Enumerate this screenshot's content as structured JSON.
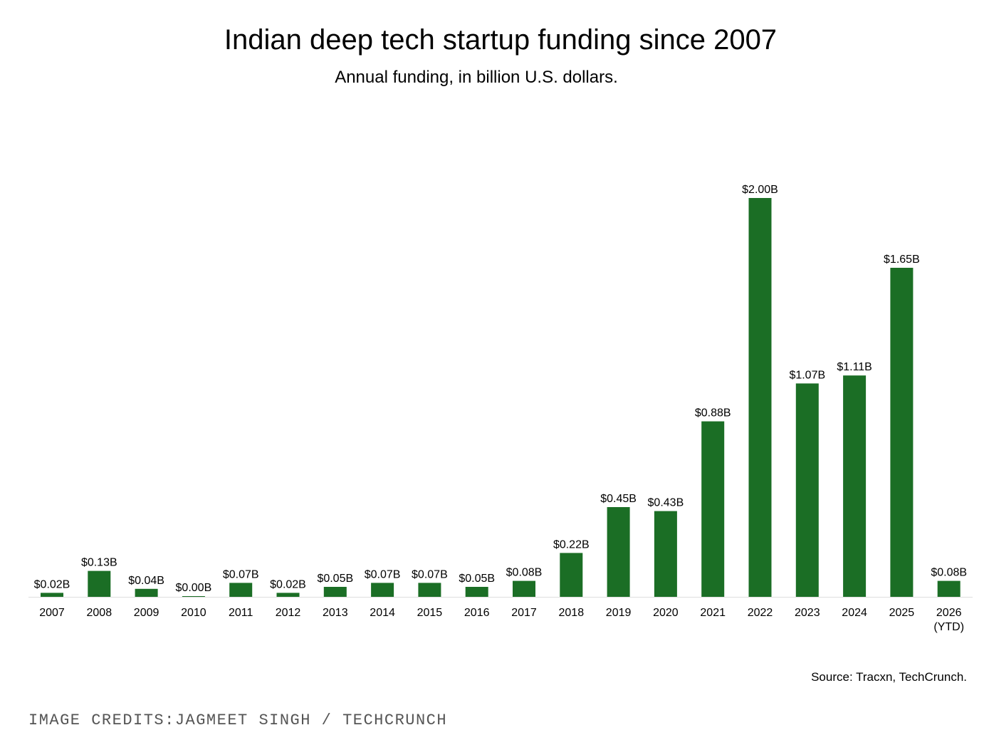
{
  "chart_data": {
    "type": "bar",
    "title": "Indian deep tech startup funding since 2007",
    "subtitle": "Annual funding, in billion U.S. dollars.",
    "xlabel": "",
    "ylabel": "",
    "ylim": [
      0,
      2.0
    ],
    "grid": false,
    "bar_color": "#1b6e25",
    "categories": [
      "2007",
      "2008",
      "2009",
      "2010",
      "2011",
      "2012",
      "2013",
      "2014",
      "2015",
      "2016",
      "2017",
      "2018",
      "2019",
      "2020",
      "2021",
      "2022",
      "2023",
      "2024",
      "2025",
      "2026\n(YTD)"
    ],
    "values": [
      0.02,
      0.13,
      0.04,
      0.0,
      0.07,
      0.02,
      0.05,
      0.07,
      0.07,
      0.05,
      0.08,
      0.22,
      0.45,
      0.43,
      0.88,
      2.0,
      1.07,
      1.11,
      1.65,
      0.08
    ],
    "data_labels": [
      "$0.02B",
      "$0.13B",
      "$0.04B",
      "$0.00B",
      "$0.07B",
      "$0.02B",
      "$0.05B",
      "$0.07B",
      "$0.07B",
      "$0.05B",
      "$0.08B",
      "$0.22B",
      "$0.45B",
      "$0.43B",
      "$0.88B",
      "$2.00B",
      "$1.07B",
      "$1.11B",
      "$1.65B",
      "$0.08B"
    ]
  },
  "source": "Source: Tracxn, TechCrunch.",
  "credits": "IMAGE CREDITS:JAGMEET SINGH / TECHCRUNCH"
}
